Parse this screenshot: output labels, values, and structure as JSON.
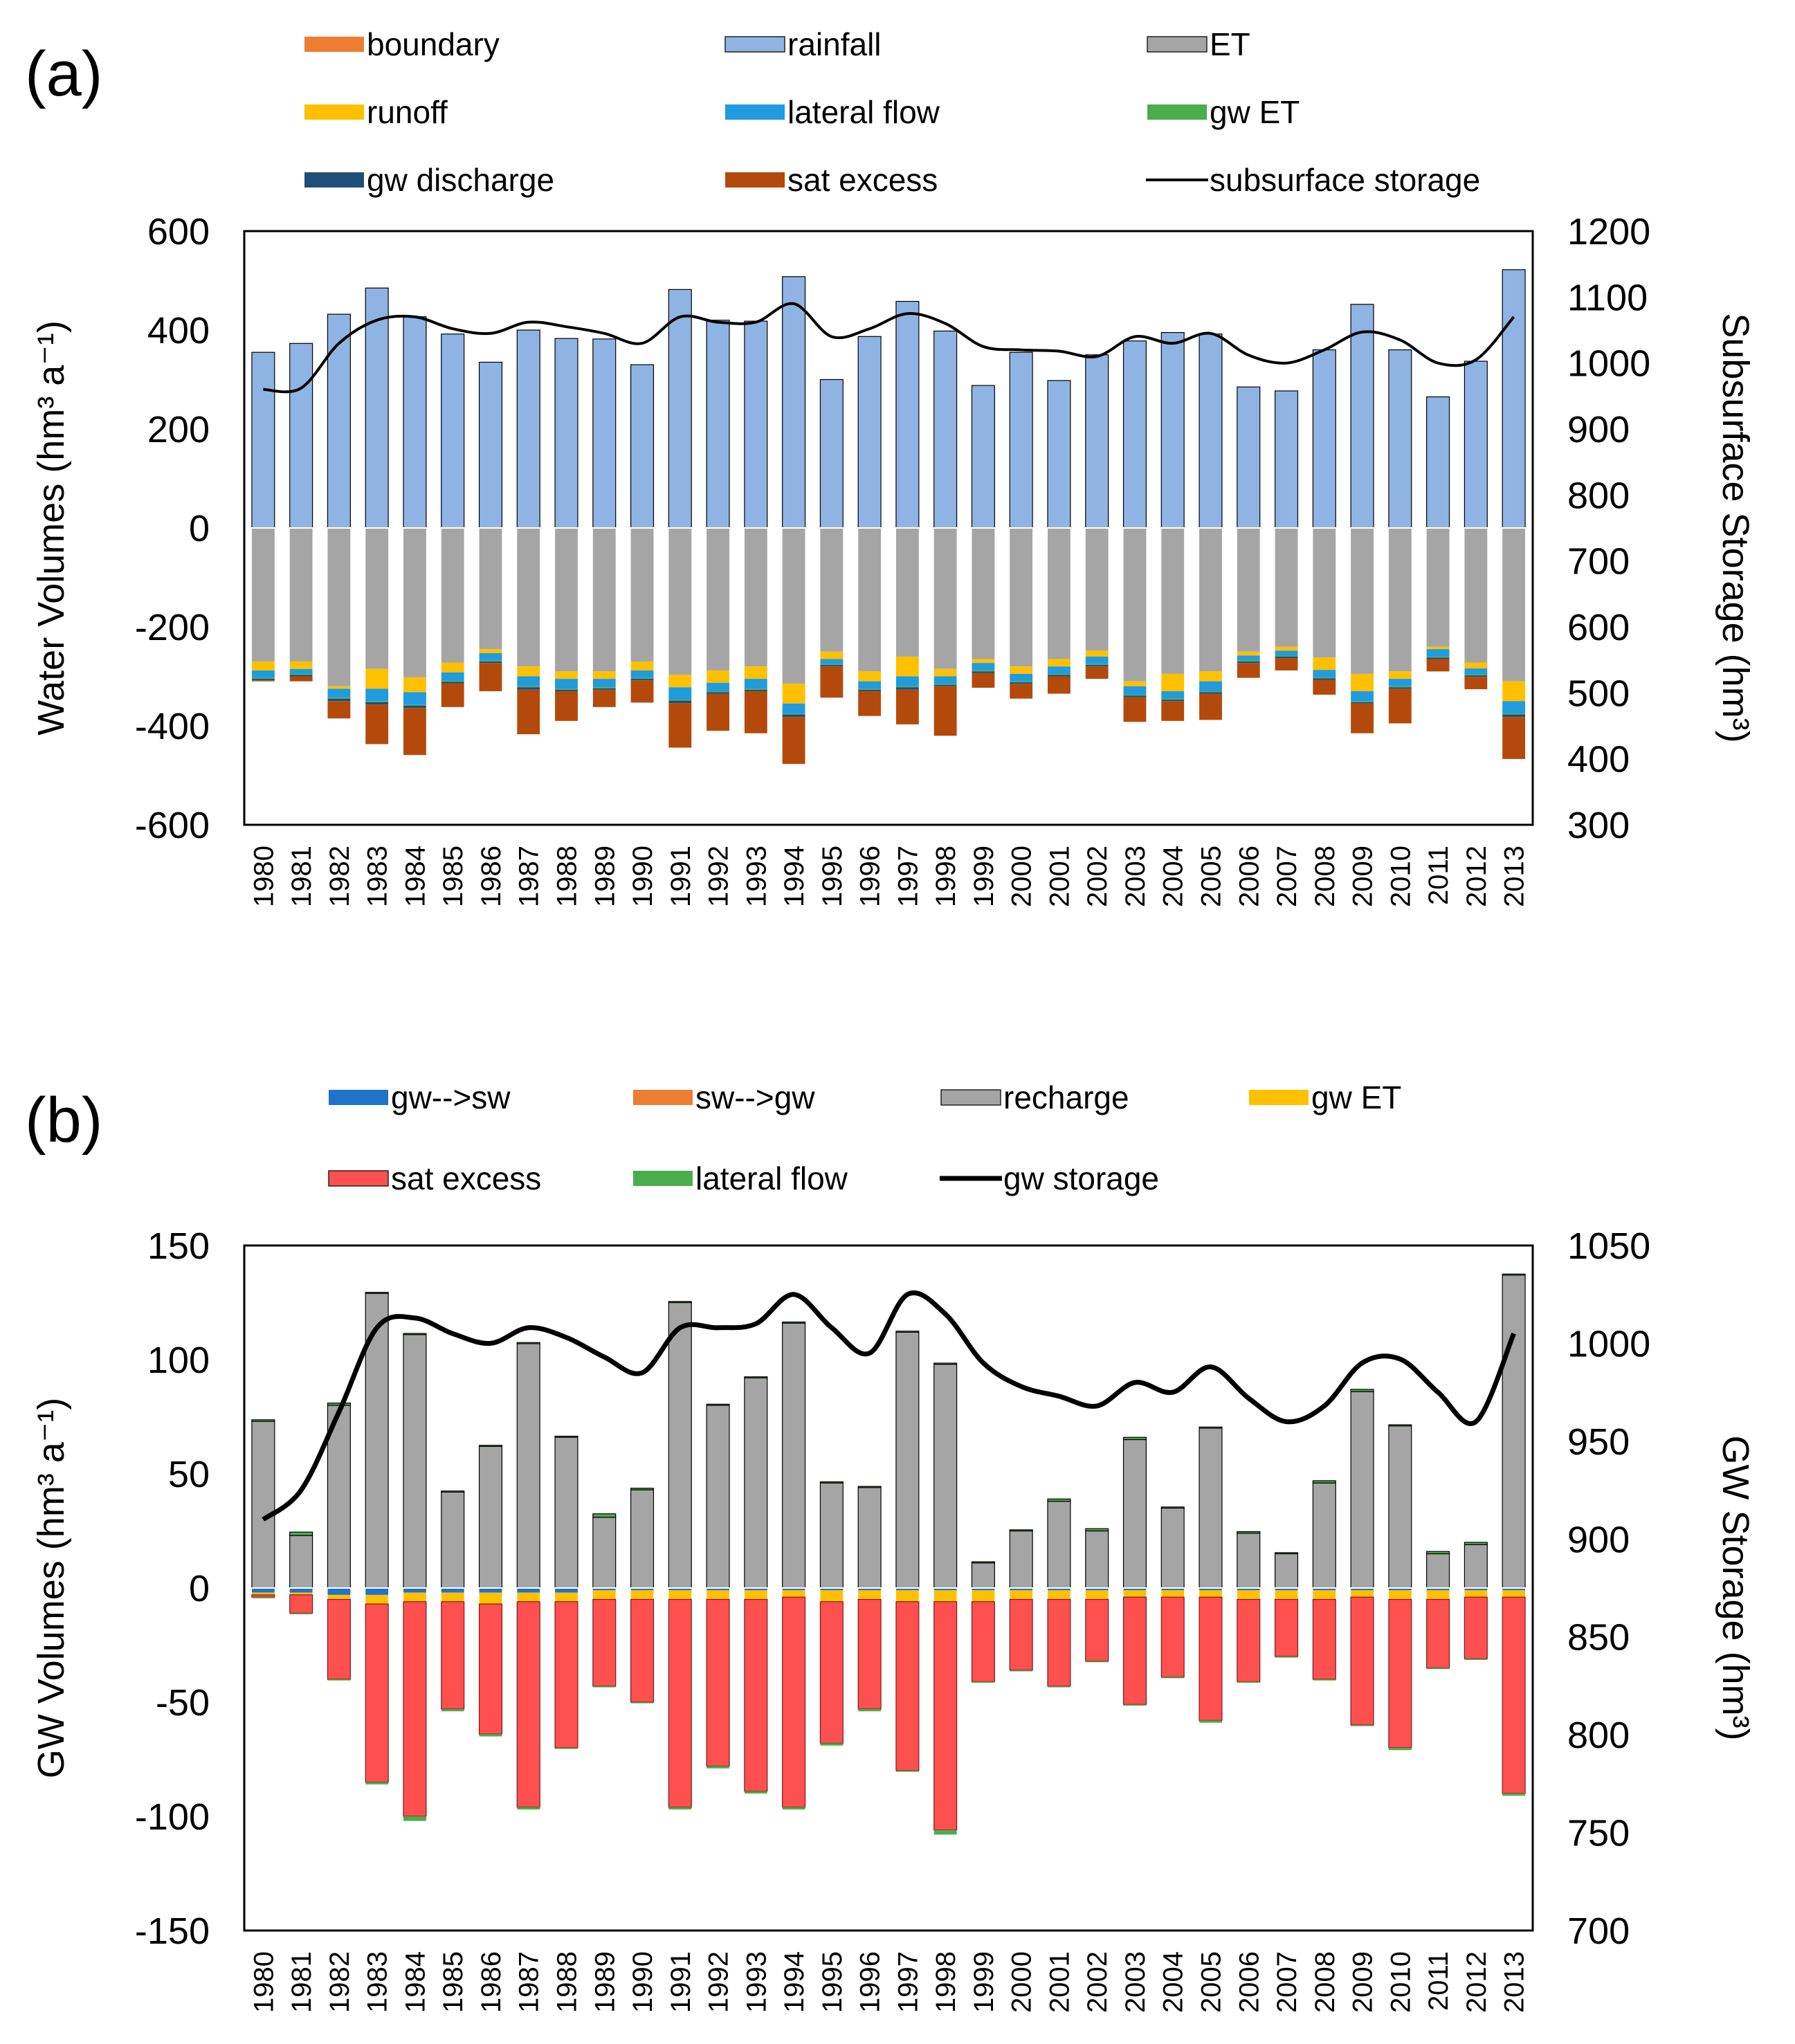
{
  "chart_data": [
    {
      "panel_label": "(a)",
      "type": "bar",
      "stacked": true,
      "years": [
        "1980",
        "1981",
        "1982",
        "1983",
        "1984",
        "1985",
        "1986",
        "1987",
        "1988",
        "1989",
        "1990",
        "1991",
        "1992",
        "1993",
        "1994",
        "1995",
        "1996",
        "1997",
        "1998",
        "1999",
        "2000",
        "2001",
        "2002",
        "2003",
        "2004",
        "2005",
        "2006",
        "2007",
        "2008",
        "2009",
        "2010",
        "2011",
        "2012",
        "2013"
      ],
      "ylabel": "Water Volumes  (hm³ a⁻¹)",
      "y2label": "Subsurface Storage (hm³)",
      "ylim": [
        -600,
        600
      ],
      "y2lim": [
        300,
        1200
      ],
      "yticks": [
        "600",
        "400",
        "200",
        "0",
        "-200",
        "-400",
        "-600"
      ],
      "y2ticks": [
        "1200",
        "1100",
        "1000",
        "900",
        "800",
        "700",
        "600",
        "500",
        "400",
        "300"
      ],
      "positive_series": [
        {
          "name": "rainfall",
          "color": "#8fb4e3",
          "values": [
            355,
            373,
            432,
            485,
            427,
            392,
            335,
            400,
            383,
            382,
            330,
            482,
            420,
            418,
            508,
            300,
            387,
            458,
            398,
            288,
            355,
            298,
            350,
            378,
            395,
            392,
            285,
            277,
            360,
            452,
            360,
            265,
            337,
            522
          ]
        }
      ],
      "negative_series": [
        {
          "name": "ET",
          "color": "#a5a5a5",
          "values": [
            -270,
            -270,
            -320,
            -285,
            -302,
            -272,
            -245,
            -280,
            -290,
            -290,
            -270,
            -297,
            -288,
            -280,
            -315,
            -250,
            -290,
            -260,
            -285,
            -265,
            -280,
            -265,
            -248,
            -310,
            -295,
            -290,
            -250,
            -240,
            -262,
            -295,
            -290,
            -240,
            -272,
            -310
          ]
        },
        {
          "name": "boundary",
          "color": "#ed7d31",
          "values": [
            0,
            0,
            0,
            0,
            0,
            0,
            0,
            0,
            0,
            0,
            0,
            0,
            0,
            0,
            0,
            0,
            0,
            0,
            0,
            0,
            0,
            0,
            0,
            0,
            0,
            0,
            0,
            0,
            0,
            0,
            0,
            0,
            0,
            0
          ]
        },
        {
          "name": "runoff",
          "color": "#ffc000",
          "values": [
            -18,
            -15,
            -5,
            -40,
            -30,
            -20,
            -8,
            -20,
            -15,
            -15,
            -18,
            -25,
            -25,
            -25,
            -40,
            -15,
            -20,
            -40,
            -15,
            -8,
            -15,
            -15,
            -12,
            -10,
            -35,
            -20,
            -8,
            -8,
            -25,
            -35,
            -15,
            -5,
            -12,
            -40
          ]
        },
        {
          "name": "lateral flow",
          "color": "#1f9bde",
          "values": [
            -15,
            -10,
            -18,
            -25,
            -25,
            -17,
            -15,
            -20,
            -20,
            -17,
            -15,
            -25,
            -17,
            -20,
            -20,
            -10,
            -15,
            -20,
            -15,
            -15,
            -15,
            -15,
            -15,
            -17,
            -15,
            -20,
            -10,
            -10,
            -15,
            -20,
            -15,
            -15,
            -12,
            -25
          ]
        },
        {
          "name": "gw ET",
          "color": "#4aad4c",
          "values": [
            -2,
            -2,
            -2,
            -2,
            -2,
            -2,
            -2,
            -2,
            -2,
            -2,
            -2,
            -2,
            -2,
            -2,
            -2,
            -2,
            -2,
            -2,
            -2,
            -2,
            -2,
            -2,
            -2,
            -2,
            -2,
            -2,
            -2,
            -2,
            -2,
            -2,
            -2,
            -2,
            -2,
            -2
          ]
        },
        {
          "name": "gw discharge",
          "color": "#1f4e79",
          "values": [
            -3,
            -3,
            -5,
            -5,
            -5,
            -3,
            -3,
            -5,
            -3,
            -3,
            -3,
            -5,
            -3,
            -3,
            -5,
            -3,
            -3,
            -5,
            -3,
            -3,
            -3,
            -3,
            -3,
            -3,
            -3,
            -3,
            -3,
            -3,
            -3,
            -3,
            -3,
            -3,
            -3,
            -5
          ]
        },
        {
          "name": "sat excess",
          "color": "#b34a0c",
          "values": [
            -2,
            -10,
            -35,
            -80,
            -95,
            -48,
            -57,
            -90,
            -60,
            -35,
            -45,
            -90,
            -75,
            -85,
            -95,
            -63,
            -50,
            -70,
            -100,
            -30,
            -30,
            -35,
            -25,
            -50,
            -40,
            -53,
            -30,
            -25,
            -30,
            -60,
            -70,
            -25,
            -25,
            -85
          ]
        }
      ],
      "line_series": {
        "name": "subsurface storage",
        "color": "#000000",
        "values": [
          960,
          962,
          1030,
          1065,
          1070,
          1052,
          1045,
          1062,
          1055,
          1045,
          1030,
          1070,
          1062,
          1062,
          1090,
          1040,
          1052,
          1075,
          1060,
          1025,
          1020,
          1018,
          1010,
          1040,
          1030,
          1045,
          1012,
          1000,
          1020,
          1047,
          1035,
          1000,
          1005,
          1070
        ]
      },
      "legend_items": [
        {
          "label": "boundary",
          "color": "#ed7d31",
          "kind": "box"
        },
        {
          "label": "rainfall",
          "color": "#8fb4e3",
          "kind": "box"
        },
        {
          "label": "ET",
          "color": "#a5a5a5",
          "kind": "box"
        },
        {
          "label": "runoff",
          "color": "#ffc000",
          "kind": "box"
        },
        {
          "label": "lateral flow",
          "color": "#1f9bde",
          "kind": "box"
        },
        {
          "label": "gw ET",
          "color": "#4aad4c",
          "kind": "box"
        },
        {
          "label": "gw discharge",
          "color": "#1f4e79",
          "kind": "box"
        },
        {
          "label": "sat excess",
          "color": "#b34a0c",
          "kind": "box"
        },
        {
          "label": "subsurface storage",
          "color": "#000000",
          "kind": "line"
        }
      ]
    },
    {
      "panel_label": "(b)",
      "type": "bar",
      "stacked": true,
      "years": [
        "1980",
        "1981",
        "1982",
        "1983",
        "1984",
        "1985",
        "1986",
        "1987",
        "1988",
        "1989",
        "1990",
        "1991",
        "1992",
        "1993",
        "1994",
        "1995",
        "1996",
        "1997",
        "1998",
        "1999",
        "2000",
        "2001",
        "2002",
        "2003",
        "2004",
        "2005",
        "2006",
        "2007",
        "2008",
        "2009",
        "2010",
        "2011",
        "2012",
        "2013"
      ],
      "ylabel": "GW Volumes  (hm³ a⁻¹)",
      "y2label": "GW Storage (hm³)",
      "ylim": [
        -150,
        150
      ],
      "y2lim": [
        700,
        1050
      ],
      "yticks": [
        "150",
        "100",
        "50",
        "0",
        "-50",
        "-100",
        "-150"
      ],
      "y2ticks": [
        "1050",
        "1000",
        "950",
        "900",
        "850",
        "800",
        "750",
        "700"
      ],
      "positive_series": [
        {
          "name": "recharge",
          "color": "#a5a5a5",
          "values": [
            73,
            23,
            80,
            129,
            111,
            42,
            62,
            107,
            66,
            31,
            43,
            125,
            80,
            92,
            116,
            46,
            44,
            112,
            98,
            11,
            25,
            38,
            25,
            65,
            35,
            70,
            24,
            15,
            46,
            86,
            71,
            15,
            19,
            137
          ]
        },
        {
          "name": "sw-->gw",
          "color": "#ed7d31",
          "values": [
            0,
            0,
            0,
            0,
            0,
            0,
            0,
            0,
            0,
            0,
            0,
            0,
            0,
            0,
            0,
            0,
            0,
            0,
            0,
            0,
            0,
            0,
            0,
            0,
            0,
            0,
            0,
            0,
            0,
            0,
            0,
            0,
            0,
            0
          ]
        },
        {
          "name": "lateral flow",
          "color": "#4aad4c",
          "values": [
            0.7,
            1.5,
            1,
            0.5,
            0.5,
            0.5,
            0.5,
            0.5,
            0.5,
            1.5,
            0.7,
            0.5,
            0.5,
            0.5,
            0.5,
            0.5,
            0.5,
            0.5,
            0.5,
            0.5,
            0.5,
            1,
            1,
            1,
            0.5,
            0.5,
            0.7,
            0.5,
            1,
            1,
            0.5,
            1,
            1,
            0.5
          ]
        }
      ],
      "negative_series": [
        {
          "name": "gw-->sw",
          "color": "#1f73c8",
          "values": [
            -2,
            -2,
            -3,
            -3,
            -2,
            -2,
            -2,
            -2,
            -2,
            -1,
            -1,
            -1,
            -1,
            -1,
            -1,
            -1,
            -1,
            -1,
            -1,
            -1,
            -1,
            -1,
            -1,
            -1,
            -1,
            -1,
            -1,
            -1,
            -1,
            -1,
            -1,
            -1,
            -1,
            -1
          ]
        },
        {
          "name": "gw ET",
          "color": "#ffc000",
          "values": [
            -1,
            -1,
            -2,
            -4,
            -4,
            -4,
            -5,
            -4,
            -4,
            -4,
            -4,
            -4,
            -4,
            -4,
            -3,
            -5,
            -4,
            -5,
            -5,
            -5,
            -4,
            -4,
            -4,
            -3,
            -3,
            -3,
            -4,
            -4,
            -4,
            -3,
            -4,
            -4,
            -3,
            -3
          ]
        },
        {
          "name": "sat excess",
          "color": "#ff5050",
          "values": [
            -1,
            -8,
            -35,
            -78,
            -94,
            -47,
            -57,
            -90,
            -64,
            -38,
            -45,
            -91,
            -73,
            -84,
            -92,
            -62,
            -48,
            -74,
            -100,
            -35,
            -31,
            -38,
            -27,
            -47,
            -35,
            -54,
            -36,
            -25,
            -35,
            -56,
            -65,
            -30,
            -27,
            -86
          ]
        },
        {
          "name": "lateral flow",
          "color": "#4aad4c",
          "values": [
            -0.5,
            -0.5,
            -0.5,
            -1,
            -2,
            -1,
            -1,
            -1,
            -0.5,
            -0.5,
            -0.5,
            -1,
            -1,
            -1,
            -1,
            -1,
            -1,
            -0.5,
            -2,
            -0.5,
            -0.5,
            -0.5,
            -0.5,
            -0.5,
            -0.5,
            -1,
            -0.5,
            -0.5,
            -0.5,
            -0.5,
            -1,
            -0.5,
            -0.5,
            -1
          ]
        }
      ],
      "line_series": {
        "name": "gw storage",
        "color": "#000000",
        "values": [
          910,
          925,
          965,
          1008,
          1013,
          1005,
          1000,
          1008,
          1003,
          993,
          985,
          1008,
          1008,
          1010,
          1025,
          1008,
          995,
          1025,
          1015,
          990,
          978,
          973,
          968,
          980,
          975,
          988,
          972,
          960,
          968,
          990,
          992,
          975,
          960,
          1005
        ]
      },
      "legend_items": [
        {
          "label": "gw-->sw",
          "color": "#1f73c8",
          "kind": "box"
        },
        {
          "label": "sw-->gw",
          "color": "#ed7d31",
          "kind": "box"
        },
        {
          "label": "recharge",
          "color": "#a5a5a5",
          "kind": "box"
        },
        {
          "label": "gw ET",
          "color": "#ffc000",
          "kind": "box"
        },
        {
          "label": "sat excess",
          "color": "#ff5050",
          "kind": "box"
        },
        {
          "label": "lateral flow",
          "color": "#4aad4c",
          "kind": "box"
        },
        {
          "label": "gw storage",
          "color": "#000000",
          "kind": "line"
        }
      ]
    }
  ]
}
